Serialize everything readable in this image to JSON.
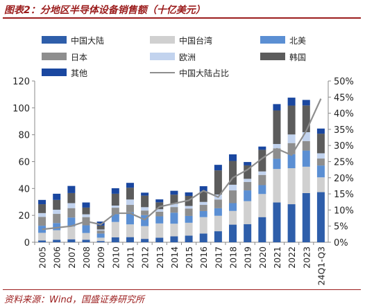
{
  "figure": {
    "title": "图表2：分地区半导体设备销售额（十亿美元）",
    "source": "资料来源：Wind，国盛证券研究所"
  },
  "chart_data": {
    "type": "bar",
    "stacked": true,
    "categories": [
      "2005",
      "2006",
      "2007",
      "2008",
      "2009",
      "2010",
      "2011",
      "2012",
      "2013",
      "2014",
      "2015",
      "2016",
      "2017",
      "2018",
      "2019",
      "2020",
      "2021",
      "2022",
      "2023",
      "24Q1-Q3"
    ],
    "series": [
      {
        "name": "中国大陆",
        "color": "#2e5eaa",
        "values": [
          1.3,
          1.8,
          2.2,
          1.9,
          0.9,
          3.7,
          3.8,
          2.5,
          3.4,
          4.4,
          4.9,
          6.5,
          8.2,
          13.1,
          13.5,
          18.7,
          29.6,
          28.3,
          36.6,
          37.3
        ]
      },
      {
        "name": "中国台湾",
        "color": "#d0d0d0",
        "values": [
          5.7,
          7.2,
          9.5,
          5.0,
          2.5,
          11.4,
          9.5,
          9.5,
          10.6,
          9.4,
          9.6,
          12.2,
          11.5,
          10.2,
          17.1,
          17.2,
          24.9,
          26.8,
          19.6,
          11.0
        ]
      },
      {
        "name": "北美",
        "color": "#5b8fd3",
        "values": [
          5.3,
          5.3,
          6.7,
          5.7,
          3.1,
          5.8,
          9.0,
          8.2,
          5.3,
          8.2,
          5.1,
          4.5,
          5.6,
          5.8,
          8.0,
          6.6,
          7.6,
          10.4,
          12.0,
          8.8
        ]
      },
      {
        "name": "日本",
        "color": "#8e8e8e",
        "values": [
          6.6,
          6.8,
          7.0,
          6.1,
          2.2,
          4.8,
          5.5,
          3.4,
          3.4,
          4.2,
          5.5,
          4.6,
          6.5,
          9.5,
          6.3,
          7.6,
          7.8,
          8.3,
          7.1,
          5.2
        ]
      },
      {
        "name": "欧洲",
        "color": "#c2d3ee",
        "values": [
          2.8,
          3.1,
          3.7,
          2.1,
          0.8,
          1.6,
          4.0,
          2.5,
          1.9,
          2.4,
          1.9,
          2.2,
          3.7,
          4.2,
          2.3,
          2.6,
          3.2,
          6.4,
          6.6,
          3.9
        ]
      },
      {
        "name": "韩国",
        "color": "#5c5c5c",
        "values": [
          6.6,
          7.3,
          7.5,
          5.0,
          2.9,
          8.8,
          8.8,
          8.6,
          5.1,
          6.8,
          7.5,
          7.7,
          18.0,
          17.7,
          10.0,
          16.1,
          25.0,
          21.5,
          19.9,
          14.6
        ]
      },
      {
        "name": "其他",
        "color": "#1a47a0",
        "values": [
          3.2,
          4.6,
          5.3,
          3.8,
          3.0,
          4.1,
          3.6,
          2.2,
          2.2,
          2.9,
          2.6,
          4.0,
          4.1,
          4.9,
          2.5,
          2.4,
          4.7,
          5.9,
          4.1,
          3.8
        ]
      }
    ],
    "line_series": {
      "name": "中国大陆占比",
      "color": "#8e8e8e",
      "axis": "right",
      "values": [
        4,
        4.5,
        5,
        6.5,
        5.5,
        9,
        9,
        7,
        11,
        12,
        13,
        16,
        14,
        20,
        22.5,
        26,
        29,
        27,
        34.5,
        44.5
      ]
    },
    "y_left": {
      "min": 0,
      "max": 120,
      "ticks": [
        "0",
        "20",
        "40",
        "60",
        "80",
        "100",
        "120"
      ]
    },
    "y_right": {
      "min": 0,
      "max": 50,
      "ticks": [
        "0%",
        "5%",
        "10%",
        "15%",
        "20%",
        "25%",
        "30%",
        "35%",
        "40%",
        "45%",
        "50%"
      ]
    },
    "grid": false,
    "legend": "top"
  }
}
